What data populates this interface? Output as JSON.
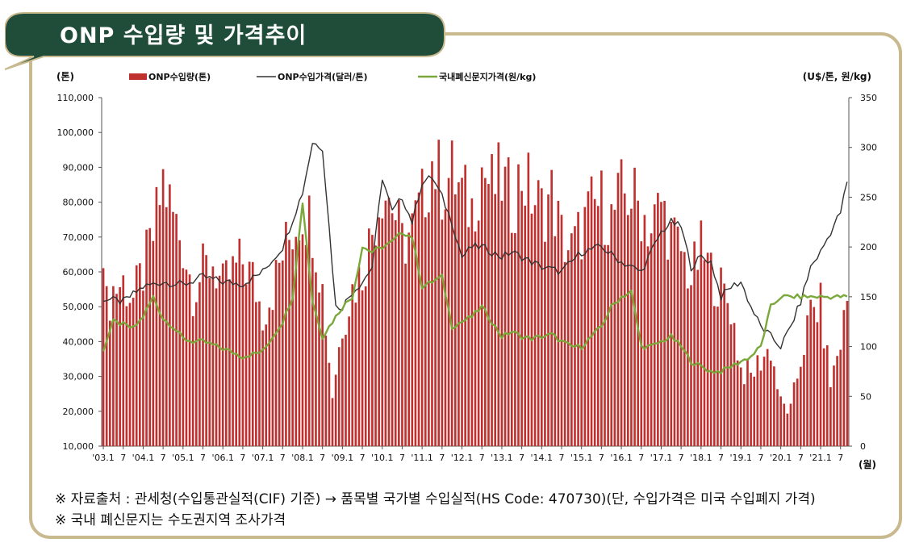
{
  "title": "ONP 수입량 및 가격추이",
  "notes": [
    "※ 자료출처 : 관세청(수입통관실적(CIF) 기준) → 품목별 국가별 수입실적(HS Code: 470730)(단, 수입가격은 미국 수입폐지 가격)",
    "※ 국내 폐신문지는 수도권지역 조사가격"
  ],
  "colors": {
    "bar": "#c0302f",
    "import_price_line": "#333333",
    "domestic_price_line": "#7aa83a",
    "frame": "#c8b98f",
    "banner": "#1f4d3a"
  },
  "chart_data": {
    "type": "bar",
    "left_unit": "(톤)",
    "right_unit": "(U$/톤, 원/kg)",
    "x_unit": "(월)",
    "legend": [
      "ONP수입량(톤)",
      "ONP수입가격(달러/톤)",
      "국내폐신문지가격(원/kg)"
    ],
    "y_left_ticks": [
      "110,000",
      "100,000",
      "90,000",
      "80,000",
      "70,000",
      "60,000",
      "50,000",
      "40,000",
      "30,000",
      "20,000",
      "10,000"
    ],
    "y_left_range": [
      10000,
      110000
    ],
    "y_right_ticks": [
      "350",
      "300",
      "250",
      "200",
      "150",
      "100",
      "50",
      "0"
    ],
    "y_right_range": [
      0,
      350
    ],
    "x_tick_labels": [
      "'03.1",
      "7",
      "'04.1",
      "7",
      "'05.1",
      "7",
      "'06.1",
      "7",
      "'07.1",
      "7",
      "'08.1",
      "7",
      "'09.1",
      "7",
      "'10.1",
      "7",
      "'11.1",
      "7",
      "'12.1",
      "7",
      "'13.1",
      "7",
      "'14.1",
      "7",
      "'15.1",
      "7",
      "'16.1",
      "7",
      "'17.1",
      "7",
      "'18.1",
      "7",
      "'19.1",
      "7",
      "'20.1",
      "7",
      "'21.1",
      "7"
    ],
    "months": 225,
    "series": [
      {
        "name": "ONP수입량(톤)",
        "type": "bar",
        "axis": "left",
        "keypoints_month_index": [
          0,
          1,
          3,
          6,
          9,
          12,
          15,
          18,
          21,
          24,
          27,
          30,
          33,
          36,
          39,
          42,
          45,
          48,
          51,
          54,
          57,
          60,
          63,
          66,
          69,
          72,
          75,
          78,
          81,
          84,
          87,
          90,
          93,
          96,
          99,
          102,
          105,
          108,
          111,
          114,
          117,
          120,
          123,
          126,
          129,
          132,
          135,
          138,
          141,
          144,
          147,
          150,
          153,
          156,
          159,
          162,
          165,
          168,
          171,
          174,
          177,
          180,
          183,
          186,
          189,
          192,
          195,
          198,
          201,
          204,
          207,
          210,
          213,
          216,
          219,
          222,
          224
        ],
        "keypoints_values": [
          71000,
          50000,
          55000,
          57000,
          52000,
          60000,
          70000,
          86000,
          76000,
          68000,
          55000,
          60000,
          63000,
          55000,
          60000,
          63000,
          58000,
          48000,
          55000,
          65000,
          72000,
          78000,
          74000,
          55000,
          25000,
          45000,
          55000,
          60000,
          72000,
          85000,
          80000,
          68000,
          72000,
          80000,
          92000,
          85000,
          88000,
          82000,
          78000,
          90000,
          84000,
          86000,
          80000,
          88000,
          82000,
          78000,
          82000,
          70000,
          66000,
          72000,
          78000,
          80000,
          75000,
          82000,
          82000,
          78000,
          72000,
          80000,
          70000,
          66000,
          58000,
          66000,
          60000,
          55000,
          50000,
          32000,
          30000,
          35000,
          38000,
          22000,
          20000,
          35000,
          48000,
          50000,
          28000,
          40000,
          52000
        ]
      },
      {
        "name": "ONP수입가격(달러/톤)",
        "type": "line",
        "axis": "right",
        "keypoints_month_index": [
          0,
          6,
          12,
          18,
          24,
          30,
          36,
          42,
          48,
          54,
          60,
          63,
          66,
          68,
          70,
          72,
          75,
          78,
          81,
          84,
          87,
          90,
          93,
          96,
          99,
          102,
          105,
          108,
          111,
          114,
          117,
          120,
          123,
          126,
          129,
          132,
          138,
          144,
          150,
          156,
          162,
          168,
          171,
          174,
          177,
          180,
          183,
          186,
          189,
          192,
          195,
          198,
          201,
          204,
          207,
          210,
          213,
          216,
          219,
          222,
          224
        ],
        "keypoints_values": [
          148,
          145,
          160,
          165,
          162,
          170,
          165,
          163,
          175,
          200,
          255,
          305,
          300,
          220,
          140,
          140,
          155,
          165,
          180,
          270,
          235,
          250,
          225,
          265,
          270,
          250,
          225,
          190,
          200,
          200,
          195,
          190,
          195,
          190,
          185,
          180,
          175,
          195,
          200,
          185,
          175,
          215,
          225,
          220,
          180,
          190,
          185,
          150,
          160,
          165,
          140,
          120,
          110,
          100,
          120,
          145,
          180,
          195,
          215,
          235,
          265
        ]
      },
      {
        "name": "국내폐신문지가격(원/kg)",
        "type": "line",
        "axis": "right",
        "keypoints_month_index": [
          0,
          3,
          6,
          9,
          12,
          15,
          18,
          21,
          24,
          27,
          30,
          36,
          42,
          48,
          54,
          57,
          60,
          63,
          66,
          69,
          72,
          75,
          78,
          81,
          84,
          87,
          90,
          93,
          96,
          99,
          102,
          105,
          108,
          111,
          114,
          117,
          120,
          123,
          126,
          129,
          132,
          135,
          138,
          141,
          144,
          147,
          150,
          153,
          156,
          159,
          162,
          165,
          168,
          171,
          174,
          177,
          180,
          183,
          186,
          189,
          192,
          195,
          198,
          201,
          204,
          207,
          210,
          213,
          216,
          219,
          222,
          224
        ],
        "keypoints_values": [
          97,
          125,
          122,
          118,
          130,
          150,
          128,
          120,
          108,
          105,
          105,
          98,
          90,
          95,
          125,
          150,
          245,
          145,
          110,
          125,
          140,
          150,
          200,
          195,
          200,
          205,
          215,
          210,
          160,
          165,
          170,
          120,
          125,
          130,
          140,
          125,
          110,
          115,
          110,
          108,
          110,
          112,
          105,
          100,
          100,
          110,
          120,
          140,
          150,
          155,
          100,
          100,
          105,
          110,
          100,
          85,
          80,
          75,
          75,
          80,
          85,
          90,
          100,
          140,
          150,
          150,
          150,
          150,
          150,
          150,
          150,
          150
        ]
      }
    ]
  }
}
